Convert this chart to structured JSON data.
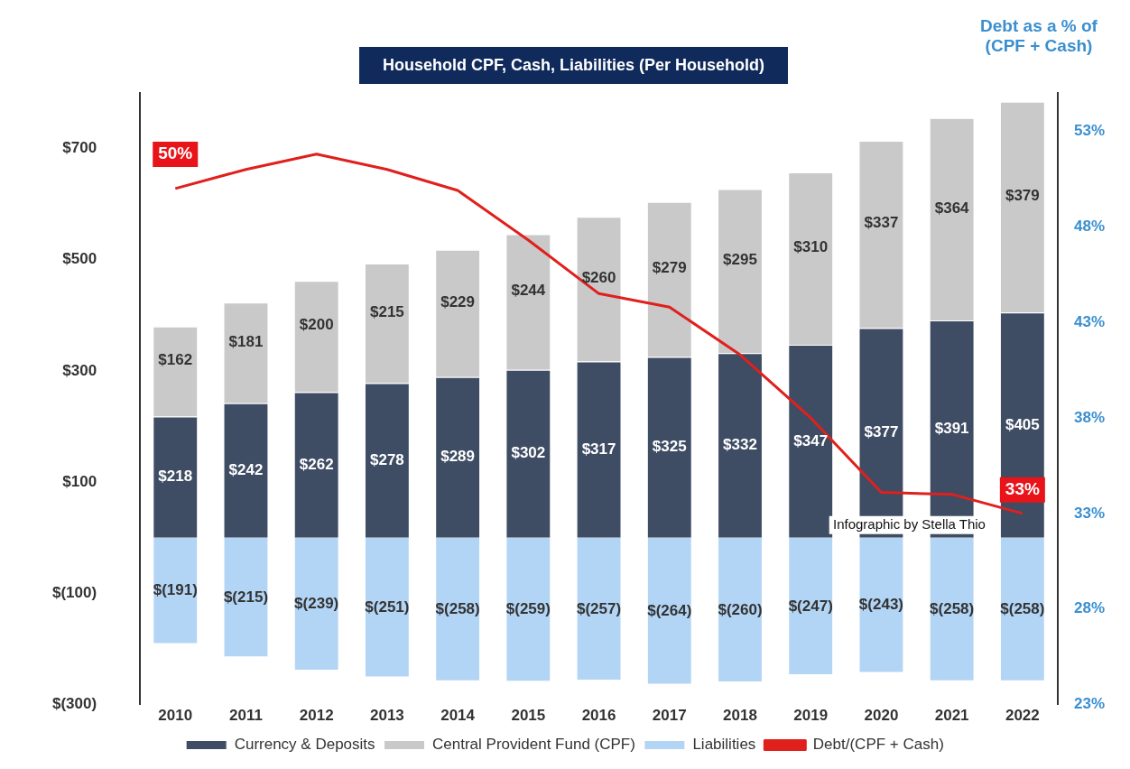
{
  "chart_data": {
    "type": "bar",
    "title": "Household CPF, Cash, Liabilities (Per Household)",
    "y2label": "Debt as a % of (CPF + Cash)",
    "categories": [
      "2010",
      "2011",
      "2012",
      "2013",
      "2014",
      "2015",
      "2016",
      "2017",
      "2018",
      "2019",
      "2020",
      "2021",
      "2022"
    ],
    "stacked": true,
    "series": [
      {
        "name": "Currency & Deposits",
        "color": "#3e4c64",
        "values": [
          218,
          242,
          262,
          278,
          289,
          302,
          317,
          325,
          332,
          347,
          377,
          391,
          405
        ],
        "value_labels": [
          "$218",
          "$242",
          "$262",
          "$278",
          "$289",
          "$302",
          "$317",
          "$325",
          "$332",
          "$347",
          "$377",
          "$391",
          "$405"
        ]
      },
      {
        "name": "Central Provident Fund (CPF)",
        "color": "#c9c9c9",
        "values": [
          162,
          181,
          200,
          215,
          229,
          244,
          260,
          279,
          295,
          310,
          337,
          364,
          379
        ],
        "value_labels": [
          "$162",
          "$181",
          "$200",
          "$215",
          "$229",
          "$244",
          "$260",
          "$279",
          "$295",
          "$310",
          "$337",
          "$364",
          "$379"
        ]
      },
      {
        "name": "Liabilities",
        "color": "#b3d5f5",
        "values": [
          -191,
          -215,
          -239,
          -251,
          -258,
          -259,
          -257,
          -264,
          -260,
          -247,
          -243,
          -258,
          -258
        ],
        "value_labels": [
          "$(191)",
          "$(215)",
          "$(239)",
          "$(251)",
          "$(258)",
          "$(259)",
          "$(257)",
          "$(264)",
          "$(260)",
          "$(247)",
          "$(243)",
          "$(258)",
          "$(258)"
        ]
      },
      {
        "name": "Debt/(CPF + Cash)",
        "type": "line",
        "axis": "y2",
        "color": "#e0201c",
        "values": [
          50,
          51,
          51.8,
          51,
          49.9,
          47.3,
          44.5,
          43.8,
          41.3,
          38,
          34.1,
          34,
          33
        ]
      }
    ],
    "ylim": [
      -300,
      800
    ],
    "yticks": [
      {
        "value": -300,
        "label": "$(300)"
      },
      {
        "value": -100,
        "label": "$(100)"
      },
      {
        "value": 100,
        "label": "$100"
      },
      {
        "value": 300,
        "label": "$300"
      },
      {
        "value": 500,
        "label": "$500"
      },
      {
        "value": 700,
        "label": "$700"
      }
    ],
    "y2lim": [
      23,
      55
    ],
    "y2ticks": [
      {
        "value": 23,
        "label": "23%"
      },
      {
        "value": 28,
        "label": "28%"
      },
      {
        "value": 33,
        "label": "33%"
      },
      {
        "value": 38,
        "label": "38%"
      },
      {
        "value": 43,
        "label": "43%"
      },
      {
        "value": 48,
        "label": "48%"
      },
      {
        "value": 53,
        "label": "53%"
      }
    ],
    "annotations": [
      "50%",
      "33%",
      "Infographic by Stella Thio"
    ],
    "grid": false,
    "legend": "bottom",
    "marker": "none"
  }
}
